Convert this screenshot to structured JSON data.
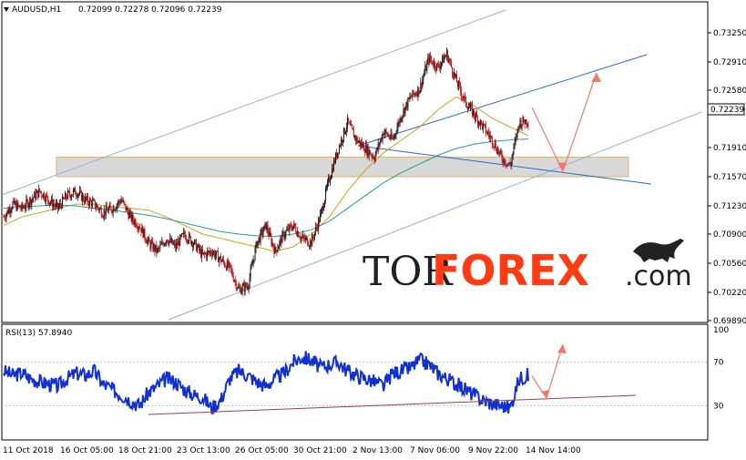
{
  "chart_data": [
    {
      "type": "line",
      "name_label": "AUDUSD,H1",
      "ohlc_label": "0.72099 0.72278 0.72096 0.72239",
      "symbol": "AUDUSD",
      "timeframe": "H1",
      "open": 0.72099,
      "high": 0.72278,
      "low": 0.72096,
      "close": 0.72239,
      "last_price_label": "0.72239",
      "ylim": [
        0.6989,
        0.7342
      ],
      "y_ticks": [
        "0.73250",
        "0.72910",
        "0.72580",
        "0.72239",
        "0.71910",
        "0.71570",
        "0.71230",
        "0.70900",
        "0.70560",
        "0.70220",
        "0.69890"
      ],
      "x_ticks": [
        "11 Oct 2018",
        "16 Oct 05:00",
        "18 Oct 21:00",
        "23 Oct 13:00",
        "26 Oct 05:00",
        "30 Oct 21:00",
        "2 Nov 13:00",
        "7 Nov 06:00",
        "9 Nov 22:00",
        "14 Nov 14:00"
      ],
      "price_path": {
        "x_index": [
          0,
          10,
          20,
          30,
          40,
          50,
          60,
          70,
          80,
          90,
          100,
          110,
          120,
          130,
          140,
          150,
          160,
          170,
          180,
          190,
          200,
          210,
          220,
          230,
          240,
          250,
          260,
          270,
          280,
          290,
          300,
          310,
          320,
          330,
          340,
          350,
          360,
          370,
          380,
          390,
          400,
          410,
          420,
          430,
          440,
          450,
          460,
          470,
          480,
          490,
          500,
          510,
          520,
          530,
          540,
          550,
          560,
          570,
          580
        ],
        "close": [
          0.711,
          0.7125,
          0.712,
          0.713,
          0.714,
          0.713,
          0.712,
          0.7135,
          0.714,
          0.713,
          0.7125,
          0.7115,
          0.712,
          0.713,
          0.711,
          0.71,
          0.708,
          0.707,
          0.7085,
          0.7075,
          0.709,
          0.708,
          0.7065,
          0.707,
          0.706,
          0.705,
          0.7025,
          0.703,
          0.708,
          0.71,
          0.707,
          0.709,
          0.71,
          0.7085,
          0.708,
          0.711,
          0.7155,
          0.719,
          0.722,
          0.72,
          0.719,
          0.718,
          0.721,
          0.72,
          0.723,
          0.725,
          0.726,
          0.7295,
          0.7285,
          0.73,
          0.727,
          0.7245,
          0.723,
          0.7215,
          0.72,
          0.718,
          0.717,
          0.722,
          0.7223
        ]
      },
      "moving_averages": [
        {
          "color": "#d4a017",
          "values": [
            0.71,
            0.711,
            0.7115,
            0.712,
            0.7125,
            0.7125,
            0.7122,
            0.712,
            0.7118,
            0.711,
            0.71,
            0.709,
            0.7085,
            0.708,
            0.7075,
            0.707,
            0.7075,
            0.709,
            0.711,
            0.714,
            0.7165,
            0.7185,
            0.72,
            0.7215,
            0.7235,
            0.725,
            0.724,
            0.7225,
            0.7215,
            0.7205
          ]
        },
        {
          "color": "#20a090",
          "values": [
            0.712,
            0.7122,
            0.7123,
            0.7124,
            0.7123,
            0.712,
            0.7118,
            0.7115,
            0.7112,
            0.7108,
            0.7103,
            0.7098,
            0.7093,
            0.709,
            0.7088,
            0.7087,
            0.709,
            0.7095,
            0.7105,
            0.712,
            0.7135,
            0.715,
            0.7162,
            0.7172,
            0.7182,
            0.719,
            0.7195,
            0.7198,
            0.72,
            0.7201
          ]
        }
      ],
      "support_zone": {
        "from": 0.7157,
        "to": 0.718
      }
    },
    {
      "type": "line",
      "indicator": "RSI",
      "period": 13,
      "label": "RSI(13) 57.8940",
      "value": 57.894,
      "ylim": [
        0,
        100
      ],
      "y_ticks": [
        "100",
        "70",
        "30",
        "0"
      ],
      "values": [
        62,
        58,
        60,
        55,
        52,
        50,
        48,
        55,
        60,
        58,
        62,
        50,
        45,
        40,
        35,
        30,
        42,
        48,
        55,
        52,
        45,
        40,
        38,
        28,
        35,
        55,
        62,
        58,
        52,
        48,
        55,
        60,
        70,
        75,
        72,
        65,
        68,
        70,
        62,
        58,
        55,
        52,
        48,
        60,
        62,
        65,
        72,
        68,
        60,
        55,
        50,
        45,
        40,
        35,
        32,
        30,
        28,
        55,
        58
      ]
    }
  ],
  "watermark": {
    "part1": "TOR",
    "part2": "FOREX",
    "part3": ".com",
    "bull_icon": "bull-icon"
  },
  "colors": {
    "bull": "#1a1a1a",
    "bear": "#cc1111",
    "channel": "#1f6fd6",
    "channel_light": "#8fb2d6",
    "arrow": "#f07a6a",
    "rsi": "#1030d0",
    "zone": "#d8d8d8"
  }
}
